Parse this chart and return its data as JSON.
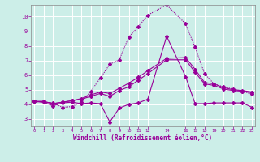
{
  "xlabel": "Windchill (Refroidissement éolien,°C)",
  "ylim": [
    2.5,
    10.8
  ],
  "yticks": [
    3,
    4,
    5,
    6,
    7,
    8,
    9,
    10
  ],
  "xlim": [
    -0.3,
    23.3
  ],
  "bg_color": "#cceee8",
  "grid_color": "#ffffff",
  "line_color": "#990099",
  "line1_x": [
    0,
    1,
    2,
    3,
    4,
    5,
    6,
    7,
    8,
    9,
    10,
    11,
    12,
    14,
    16,
    17,
    18,
    19,
    20,
    21,
    22,
    23
  ],
  "line1_y": [
    4.2,
    4.15,
    3.9,
    4.1,
    4.15,
    4.05,
    4.1,
    4.05,
    2.8,
    3.75,
    4.0,
    4.1,
    4.35,
    8.65,
    5.9,
    4.05,
    4.05,
    4.1,
    4.1,
    4.1,
    4.1,
    3.8
  ],
  "line2_x": [
    0,
    1,
    2,
    3,
    4,
    5,
    6,
    7,
    8,
    9,
    10,
    11,
    12,
    14,
    16,
    17,
    18,
    19,
    20,
    21,
    22,
    23
  ],
  "line2_y": [
    4.2,
    4.2,
    4.05,
    4.15,
    4.25,
    4.35,
    4.55,
    4.75,
    4.55,
    4.95,
    5.2,
    5.65,
    6.1,
    7.05,
    7.05,
    6.2,
    5.4,
    5.3,
    5.05,
    4.95,
    4.9,
    4.8
  ],
  "line3_x": [
    0,
    1,
    2,
    3,
    4,
    5,
    6,
    7,
    8,
    9,
    10,
    11,
    12,
    14,
    16,
    17,
    18,
    19,
    20,
    21,
    22,
    23
  ],
  "line3_y": [
    4.2,
    4.2,
    4.05,
    4.15,
    4.25,
    4.4,
    4.65,
    4.85,
    4.75,
    5.1,
    5.45,
    5.85,
    6.3,
    7.15,
    7.2,
    6.4,
    5.5,
    5.4,
    5.15,
    5.0,
    4.95,
    4.85
  ],
  "line4_x": [
    0,
    2,
    3,
    4,
    5,
    6,
    7,
    8,
    9,
    10,
    11,
    12,
    14,
    16,
    17,
    18,
    19,
    20,
    21,
    22,
    23
  ],
  "line4_y": [
    4.2,
    4.1,
    3.8,
    3.85,
    4.15,
    4.9,
    5.8,
    6.75,
    7.05,
    8.6,
    9.3,
    10.1,
    10.8,
    9.5,
    7.9,
    6.1,
    5.4,
    5.2,
    5.05,
    4.9,
    4.7
  ],
  "x_tick_positions": [
    0,
    1,
    2,
    3,
    4,
    5,
    6,
    7,
    8,
    9,
    10,
    11,
    12,
    14,
    16,
    17,
    18,
    19,
    20,
    21,
    22,
    23
  ],
  "x_tick_labels": [
    "0",
    "1",
    "2",
    "3",
    "4",
    "5",
    "6",
    "7",
    "8",
    "9",
    "10",
    "11",
    "12",
    "14",
    "16",
    "17",
    "18",
    "19",
    "20",
    "21",
    "22",
    "23"
  ]
}
